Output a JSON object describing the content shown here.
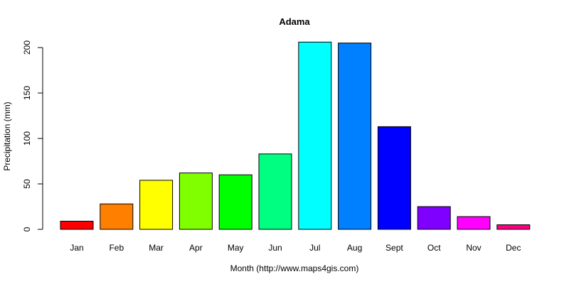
{
  "chart_data": {
    "type": "bar",
    "title": "Adama",
    "xlabel": "Month (http://www.maps4gis.com)",
    "ylabel": "Precipitation (mm)",
    "categories": [
      "Jan",
      "Feb",
      "Mar",
      "Apr",
      "May",
      "Jun",
      "Jul",
      "Aug",
      "Sept",
      "Oct",
      "Nov",
      "Dec"
    ],
    "values": [
      9,
      28,
      54,
      62,
      60,
      83,
      206,
      205,
      113,
      25,
      14,
      5
    ],
    "colors": [
      "#FF0000",
      "#FF8000",
      "#FFFF00",
      "#80FF00",
      "#00FF00",
      "#00FF80",
      "#00FFFF",
      "#0080FF",
      "#0000FF",
      "#8000FF",
      "#FF00FF",
      "#FF0080"
    ],
    "yticks": [
      0,
      50,
      100,
      150,
      200
    ],
    "ytick_labels": [
      "0",
      "50",
      "100",
      "150",
      "200"
    ],
    "ylim": [
      0,
      206
    ],
    "grid": false,
    "legend": "none"
  }
}
